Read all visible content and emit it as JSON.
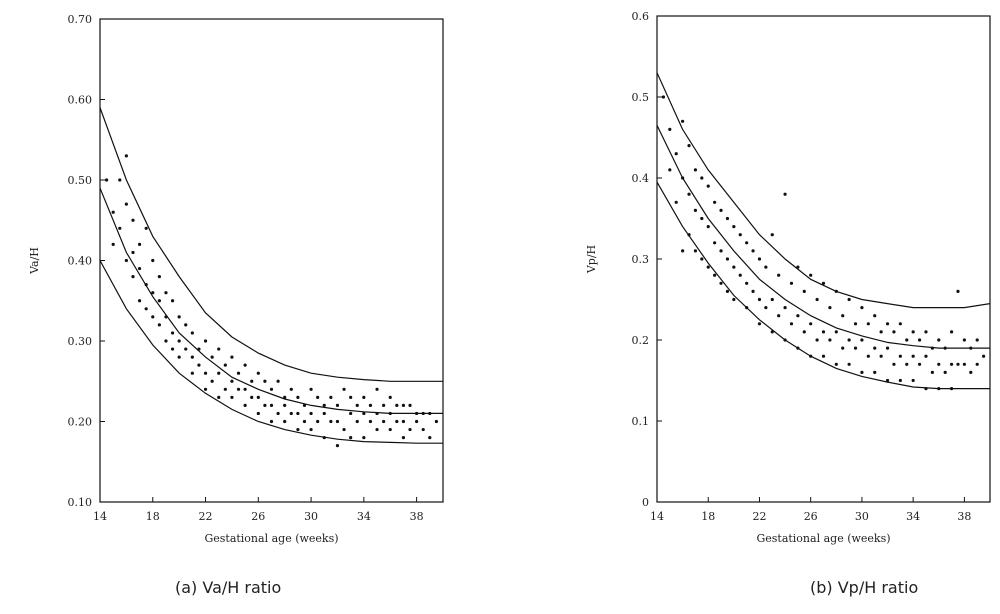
{
  "captions": {
    "a": "(a) Va/H ratio",
    "b": "(b) Vp/H ratio"
  },
  "chart_data": [
    {
      "type": "scatter",
      "xlabel": "Gestational age (weeks)",
      "ylabel": "Va/H",
      "xlim": [
        14,
        40
      ],
      "ylim": [
        0.1,
        0.7
      ],
      "xticks": [
        "14",
        "18",
        "22",
        "26",
        "30",
        "34",
        "38"
      ],
      "xtick_values": [
        14,
        18,
        22,
        26,
        30,
        34,
        38
      ],
      "yticks": [
        "0.10",
        "0.20",
        "0.30",
        "0.40",
        "0.50",
        "0.60",
        "0.70"
      ],
      "ytick_values": [
        0.1,
        0.2,
        0.3,
        0.4,
        0.5,
        0.6,
        0.7
      ],
      "series": [
        {
          "kind": "points",
          "x": [
            14.5,
            15.0,
            15.0,
            15.5,
            15.5,
            16.0,
            16.0,
            16.0,
            16.5,
            16.5,
            16.5,
            17.0,
            17.0,
            17.0,
            17.5,
            17.5,
            17.5,
            18.0,
            18.0,
            18.0,
            18.5,
            18.5,
            18.5,
            19.0,
            19.0,
            19.0,
            19.5,
            19.5,
            19.5,
            20.0,
            20.0,
            20.0,
            20.5,
            20.5,
            21.0,
            21.0,
            21.0,
            21.5,
            21.5,
            22.0,
            22.0,
            22.0,
            22.5,
            22.5,
            23.0,
            23.0,
            23.0,
            23.5,
            23.5,
            24.0,
            24.0,
            24.0,
            24.5,
            24.5,
            25.0,
            25.0,
            25.0,
            25.5,
            25.5,
            26.0,
            26.0,
            26.0,
            26.5,
            26.5,
            27.0,
            27.0,
            27.0,
            27.5,
            27.5,
            28.0,
            28.0,
            28.0,
            28.5,
            28.5,
            29.0,
            29.0,
            29.0,
            29.5,
            29.5,
            30.0,
            30.0,
            30.0,
            30.5,
            30.5,
            31.0,
            31.0,
            31.0,
            31.5,
            31.5,
            32.0,
            32.0,
            32.0,
            32.5,
            32.5,
            33.0,
            33.0,
            33.0,
            33.5,
            33.5,
            34.0,
            34.0,
            34.0,
            34.5,
            34.5,
            35.0,
            35.0,
            35.0,
            35.5,
            35.5,
            36.0,
            36.0,
            36.0,
            36.5,
            36.5,
            37.0,
            37.0,
            37.0,
            37.5,
            37.5,
            38.0,
            38.0,
            38.5,
            38.5,
            39.0,
            39.0,
            39.5
          ],
          "y": [
            0.5,
            0.46,
            0.42,
            0.5,
            0.44,
            0.47,
            0.4,
            0.53,
            0.45,
            0.41,
            0.38,
            0.42,
            0.39,
            0.35,
            0.44,
            0.37,
            0.34,
            0.4,
            0.36,
            0.33,
            0.38,
            0.35,
            0.32,
            0.36,
            0.33,
            0.3,
            0.35,
            0.31,
            0.29,
            0.33,
            0.3,
            0.28,
            0.32,
            0.29,
            0.31,
            0.28,
            0.26,
            0.29,
            0.27,
            0.3,
            0.26,
            0.24,
            0.28,
            0.25,
            0.29,
            0.26,
            0.23,
            0.27,
            0.24,
            0.28,
            0.25,
            0.23,
            0.26,
            0.24,
            0.27,
            0.24,
            0.22,
            0.25,
            0.23,
            0.26,
            0.23,
            0.21,
            0.25,
            0.22,
            0.24,
            0.22,
            0.2,
            0.25,
            0.21,
            0.23,
            0.22,
            0.2,
            0.24,
            0.21,
            0.23,
            0.21,
            0.19,
            0.22,
            0.2,
            0.24,
            0.21,
            0.19,
            0.23,
            0.2,
            0.22,
            0.21,
            0.18,
            0.23,
            0.2,
            0.22,
            0.2,
            0.17,
            0.24,
            0.19,
            0.23,
            0.21,
            0.18,
            0.22,
            0.2,
            0.23,
            0.21,
            0.18,
            0.22,
            0.2,
            0.24,
            0.21,
            0.19,
            0.22,
            0.2,
            0.23,
            0.21,
            0.19,
            0.22,
            0.2,
            0.22,
            0.2,
            0.18,
            0.22,
            0.19,
            0.21,
            0.2,
            0.21,
            0.19,
            0.21,
            0.18,
            0.2
          ]
        },
        {
          "kind": "curve",
          "name_hint": "upper",
          "x": [
            14,
            16,
            18,
            20,
            22,
            24,
            26,
            28,
            30,
            32,
            34,
            36,
            38,
            40
          ],
          "y": [
            0.59,
            0.5,
            0.43,
            0.38,
            0.335,
            0.305,
            0.285,
            0.27,
            0.26,
            0.255,
            0.252,
            0.25,
            0.25,
            0.25
          ]
        },
        {
          "kind": "curve",
          "name_hint": "middle",
          "x": [
            14,
            16,
            18,
            20,
            22,
            24,
            26,
            28,
            30,
            32,
            34,
            36,
            38,
            40
          ],
          "y": [
            0.49,
            0.41,
            0.355,
            0.31,
            0.28,
            0.255,
            0.24,
            0.228,
            0.22,
            0.215,
            0.212,
            0.21,
            0.21,
            0.21
          ]
        },
        {
          "kind": "curve",
          "name_hint": "lower",
          "x": [
            14,
            16,
            18,
            20,
            22,
            24,
            26,
            28,
            30,
            32,
            34,
            36,
            38,
            40
          ],
          "y": [
            0.4,
            0.34,
            0.295,
            0.26,
            0.235,
            0.215,
            0.2,
            0.19,
            0.183,
            0.178,
            0.175,
            0.174,
            0.173,
            0.173
          ]
        }
      ]
    },
    {
      "type": "scatter",
      "xlabel": "Gestational age (weeks)",
      "ylabel": "Vp/H",
      "xlim": [
        14,
        40
      ],
      "ylim": [
        0,
        0.6
      ],
      "xticks": [
        "14",
        "18",
        "22",
        "26",
        "30",
        "34",
        "38"
      ],
      "xtick_values": [
        14,
        18,
        22,
        26,
        30,
        34,
        38
      ],
      "yticks": [
        "0",
        "0.1",
        "0.2",
        "0.3",
        "0.4",
        "0.5",
        "0.6"
      ],
      "ytick_values": [
        0,
        0.1,
        0.2,
        0.3,
        0.4,
        0.5,
        0.6
      ],
      "series": [
        {
          "kind": "points",
          "x": [
            14.5,
            15.0,
            15.0,
            15.5,
            15.5,
            16.0,
            16.0,
            16.0,
            16.5,
            16.5,
            16.5,
            17.0,
            17.0,
            17.0,
            17.5,
            17.5,
            17.5,
            18.0,
            18.0,
            18.0,
            18.5,
            18.5,
            18.5,
            19.0,
            19.0,
            19.0,
            19.5,
            19.5,
            19.5,
            20.0,
            20.0,
            20.0,
            20.5,
            20.5,
            21.0,
            21.0,
            21.0,
            21.5,
            21.5,
            22.0,
            22.0,
            22.0,
            22.5,
            22.5,
            23.0,
            23.0,
            23.0,
            23.5,
            23.5,
            24.0,
            24.0,
            24.0,
            24.5,
            24.5,
            25.0,
            25.0,
            25.0,
            25.5,
            25.5,
            26.0,
            26.0,
            26.0,
            26.5,
            26.5,
            27.0,
            27.0,
            27.0,
            27.5,
            27.5,
            28.0,
            28.0,
            28.0,
            28.5,
            28.5,
            29.0,
            29.0,
            29.0,
            29.5,
            29.5,
            30.0,
            30.0,
            30.0,
            30.5,
            30.5,
            31.0,
            31.0,
            31.0,
            31.5,
            31.5,
            32.0,
            32.0,
            32.0,
            32.5,
            32.5,
            33.0,
            33.0,
            33.0,
            33.5,
            33.5,
            34.0,
            34.0,
            34.0,
            34.5,
            34.5,
            35.0,
            35.0,
            35.0,
            35.5,
            35.5,
            36.0,
            36.0,
            36.0,
            36.5,
            36.5,
            37.0,
            37.0,
            37.0,
            37.5,
            37.5,
            38.0,
            38.0,
            38.5,
            38.5,
            39.0,
            39.0,
            39.5
          ],
          "y": [
            0.5,
            0.46,
            0.41,
            0.43,
            0.37,
            0.47,
            0.4,
            0.31,
            0.44,
            0.38,
            0.33,
            0.41,
            0.36,
            0.31,
            0.4,
            0.35,
            0.3,
            0.39,
            0.34,
            0.29,
            0.37,
            0.32,
            0.28,
            0.36,
            0.31,
            0.27,
            0.35,
            0.3,
            0.26,
            0.34,
            0.29,
            0.25,
            0.33,
            0.28,
            0.32,
            0.27,
            0.24,
            0.31,
            0.26,
            0.3,
            0.25,
            0.22,
            0.29,
            0.24,
            0.33,
            0.25,
            0.21,
            0.28,
            0.23,
            0.38,
            0.24,
            0.2,
            0.27,
            0.22,
            0.29,
            0.23,
            0.19,
            0.26,
            0.21,
            0.28,
            0.22,
            0.18,
            0.25,
            0.2,
            0.27,
            0.21,
            0.18,
            0.24,
            0.2,
            0.26,
            0.21,
            0.17,
            0.23,
            0.19,
            0.25,
            0.2,
            0.17,
            0.22,
            0.19,
            0.24,
            0.2,
            0.16,
            0.22,
            0.18,
            0.23,
            0.19,
            0.16,
            0.21,
            0.18,
            0.22,
            0.19,
            0.15,
            0.21,
            0.17,
            0.22,
            0.18,
            0.15,
            0.2,
            0.17,
            0.21,
            0.18,
            0.15,
            0.2,
            0.17,
            0.21,
            0.18,
            0.14,
            0.19,
            0.16,
            0.2,
            0.17,
            0.14,
            0.19,
            0.16,
            0.21,
            0.17,
            0.14,
            0.26,
            0.17,
            0.2,
            0.17,
            0.19,
            0.16,
            0.2,
            0.17,
            0.18
          ]
        },
        {
          "kind": "curve",
          "name_hint": "upper",
          "x": [
            14,
            16,
            18,
            20,
            22,
            24,
            26,
            28,
            30,
            32,
            34,
            36,
            38,
            40
          ],
          "y": [
            0.53,
            0.46,
            0.41,
            0.37,
            0.33,
            0.3,
            0.275,
            0.26,
            0.25,
            0.245,
            0.24,
            0.24,
            0.24,
            0.245
          ]
        },
        {
          "kind": "curve",
          "name_hint": "middle",
          "x": [
            14,
            16,
            18,
            20,
            22,
            24,
            26,
            28,
            30,
            32,
            34,
            36,
            38,
            40
          ],
          "y": [
            0.465,
            0.4,
            0.35,
            0.31,
            0.275,
            0.25,
            0.23,
            0.215,
            0.205,
            0.197,
            0.193,
            0.19,
            0.19,
            0.19
          ]
        },
        {
          "kind": "curve",
          "name_hint": "lower",
          "x": [
            14,
            16,
            18,
            20,
            22,
            24,
            26,
            28,
            30,
            32,
            34,
            36,
            38,
            40
          ],
          "y": [
            0.395,
            0.34,
            0.295,
            0.255,
            0.225,
            0.2,
            0.18,
            0.165,
            0.155,
            0.148,
            0.142,
            0.14,
            0.14,
            0.14
          ]
        }
      ]
    }
  ]
}
